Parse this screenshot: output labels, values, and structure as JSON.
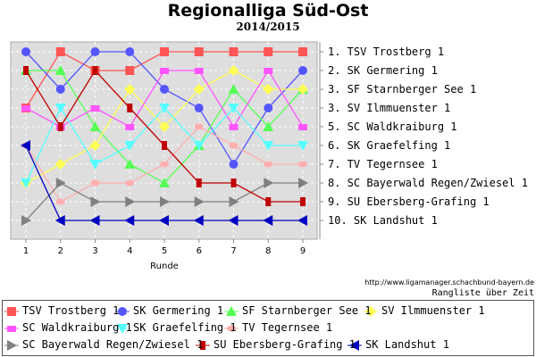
{
  "chart_data": {
    "type": "line",
    "title": "Regionalliga Süd-Ost",
    "subtitle": "2014/2015",
    "xlabel": "Runde",
    "ylabel": "",
    "x": [
      1,
      2,
      3,
      4,
      5,
      6,
      7,
      8,
      9
    ],
    "ylim": [
      1,
      10
    ],
    "y_inverted": true,
    "grid": true,
    "legend_position": "bottom",
    "right_labels": [
      "1. TSV Trostberg 1",
      "2. SK Germering 1",
      "3. SF Starnberger See 1",
      "3. SV Ilmmuenster 1",
      "5. SC Waldkraiburg 1",
      "6. SK Graefelfing 1",
      "7. TV Tegernsee 1",
      "8. SC Bayerwald Regen/Zwiesel 1",
      "9. SU Ebersberg-Grafing 1",
      "10. SK Landshut 1"
    ],
    "series": [
      {
        "name": "TSV Trostberg 1",
        "color": "#ff5555",
        "marker": "square",
        "values": [
          4,
          1,
          2,
          2,
          1,
          1,
          1,
          1,
          1
        ]
      },
      {
        "name": "SK Germering 1",
        "color": "#5555ff",
        "marker": "circle",
        "values": [
          1,
          3,
          1,
          1,
          3,
          4,
          7,
          4,
          2
        ]
      },
      {
        "name": "SF Starnberger See 1",
        "color": "#55ff55",
        "marker": "triangle-up",
        "values": [
          2,
          2,
          5,
          7,
          8,
          6,
          3,
          5,
          3
        ]
      },
      {
        "name": "SV Ilmmuenster 1",
        "color": "#ffff55",
        "marker": "diamond",
        "values": [
          8,
          7,
          6,
          3,
          5,
          3,
          2,
          3,
          3
        ]
      },
      {
        "name": "SC Waldkraiburg 1",
        "color": "#ff55ff",
        "marker": "rect",
        "values": [
          4,
          5,
          4,
          5,
          2,
          2,
          5,
          2,
          5
        ]
      },
      {
        "name": "SK Graefelfing 1",
        "color": "#55ffff",
        "marker": "triangle-down",
        "values": [
          8,
          4,
          7,
          6,
          4,
          6,
          4,
          6,
          6
        ]
      },
      {
        "name": "TV Tegernsee 1",
        "color": "#ffafaf",
        "marker": "ellipse",
        "values": [
          6,
          9,
          8,
          8,
          7,
          5,
          6,
          7,
          7
        ]
      },
      {
        "name": "SC Bayerwald Regen/Zwiesel 1",
        "color": "#808080",
        "marker": "triangle-right",
        "values": [
          10,
          8,
          9,
          9,
          9,
          9,
          9,
          8,
          8
        ]
      },
      {
        "name": "SU Ebersberg-Grafing 1",
        "color": "#c00000",
        "marker": "bar",
        "values": [
          2,
          5,
          2,
          4,
          6,
          8,
          8,
          9,
          9
        ]
      },
      {
        "name": "SK Landshut 1",
        "color": "#0000c0",
        "marker": "triangle-left",
        "values": [
          6,
          10,
          10,
          10,
          10,
          10,
          10,
          10,
          10
        ]
      }
    ]
  },
  "footer": {
    "url": "http://www.ligamanager.schachbund-bayern.de",
    "caption": "Rangliste über Zeit"
  }
}
